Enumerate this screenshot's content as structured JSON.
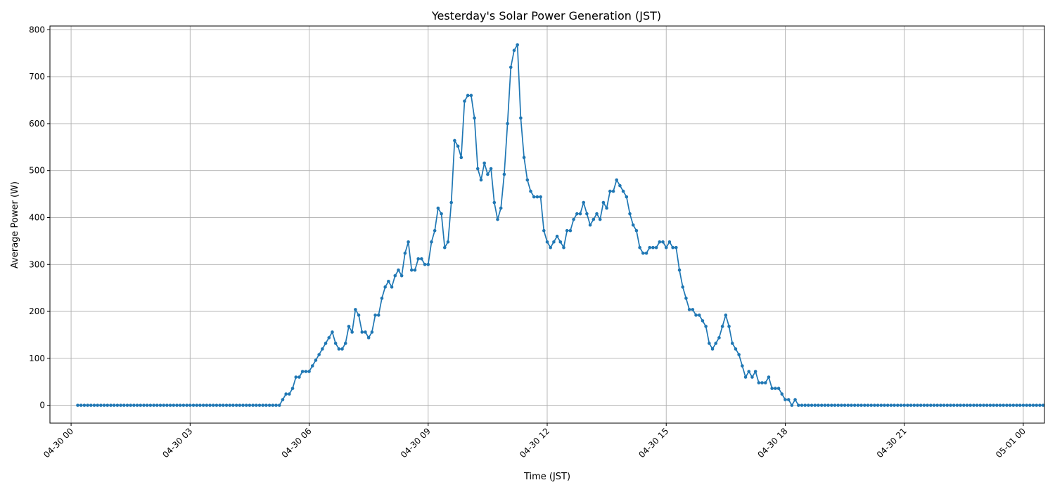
{
  "chart_data": {
    "type": "line",
    "title": "Yesterday's Solar Power Generation (JST)",
    "xlabel": "Time (JST)",
    "ylabel": "Average Power (W)",
    "x_ticks": [
      {
        "t": 0,
        "label": "04-30 00"
      },
      {
        "t": 180,
        "label": "04-30 03"
      },
      {
        "t": 360,
        "label": "04-30 06"
      },
      {
        "t": 540,
        "label": "04-30 09"
      },
      {
        "t": 720,
        "label": "04-30 12"
      },
      {
        "t": 900,
        "label": "04-30 15"
      },
      {
        "t": 1080,
        "label": "04-30 18"
      },
      {
        "t": 1260,
        "label": "04-30 21"
      },
      {
        "t": 1440,
        "label": "05-01 00"
      }
    ],
    "y_ticks": [
      0,
      100,
      200,
      300,
      400,
      500,
      600,
      700,
      800
    ],
    "ylim": [
      -38,
      808
    ],
    "grid": true,
    "series": [
      {
        "color": "#1f77b4",
        "marker": "circle",
        "x_start": "04-30 00:10",
        "x_step": "5 min",
        "values": [
          0,
          0,
          0,
          0,
          0,
          0,
          0,
          0,
          0,
          0,
          0,
          0,
          0,
          0,
          0,
          0,
          0,
          0,
          0,
          0,
          0,
          0,
          0,
          0,
          0,
          0,
          0,
          0,
          0,
          0,
          0,
          0,
          0,
          0,
          0,
          0,
          0,
          0,
          0,
          0,
          0,
          0,
          0,
          0,
          0,
          0,
          0,
          0,
          0,
          0,
          0,
          0,
          0,
          0,
          0,
          0,
          0,
          0,
          0,
          0,
          0,
          0,
          12,
          24,
          24,
          36,
          60,
          60,
          72,
          72,
          72,
          84,
          96,
          108,
          120,
          132,
          144,
          156,
          132,
          120,
          120,
          132,
          168,
          156,
          204,
          192,
          156,
          156,
          144,
          156,
          192,
          192,
          228,
          252,
          264,
          252,
          276,
          288,
          276,
          324,
          348,
          288,
          288,
          312,
          312,
          300,
          300,
          348,
          372,
          420,
          408,
          336,
          348,
          432,
          564,
          552,
          528,
          648,
          660,
          660,
          612,
          504,
          480,
          516,
          492,
          504,
          432,
          396,
          420,
          492,
          600,
          720,
          756,
          768,
          612,
          528,
          480,
          456,
          444,
          444,
          444,
          372,
          348,
          336,
          348,
          360,
          348,
          336,
          372,
          372,
          396,
          408,
          408,
          432,
          408,
          384,
          396,
          408,
          396,
          432,
          420,
          456,
          456,
          480,
          468,
          456,
          444,
          408,
          384,
          372,
          336,
          324,
          324,
          336,
          336,
          336,
          348,
          348,
          336,
          348,
          336,
          336,
          288,
          252,
          228,
          204,
          204,
          192,
          192,
          180,
          168,
          132,
          120,
          132,
          144,
          168,
          192,
          168,
          132,
          120,
          108,
          84,
          60,
          72,
          60,
          72,
          48,
          48,
          48,
          60,
          36,
          36,
          36,
          24,
          12,
          12,
          0,
          12,
          0,
          0,
          0,
          0,
          0,
          0,
          0,
          0,
          0,
          0,
          0,
          0,
          0,
          0,
          0,
          0,
          0,
          0,
          0,
          0,
          0,
          0,
          0,
          0,
          0,
          0,
          0,
          0,
          0,
          0,
          0,
          0,
          0,
          0,
          0,
          0,
          0,
          0,
          0,
          0,
          0,
          0,
          0,
          0,
          0,
          0,
          0,
          0,
          0,
          0,
          0,
          0,
          0,
          0,
          0,
          0,
          0,
          0,
          0,
          0,
          0,
          0,
          0,
          0,
          0,
          0,
          0,
          0,
          0,
          0,
          0,
          0,
          0,
          0,
          0
        ]
      }
    ]
  }
}
